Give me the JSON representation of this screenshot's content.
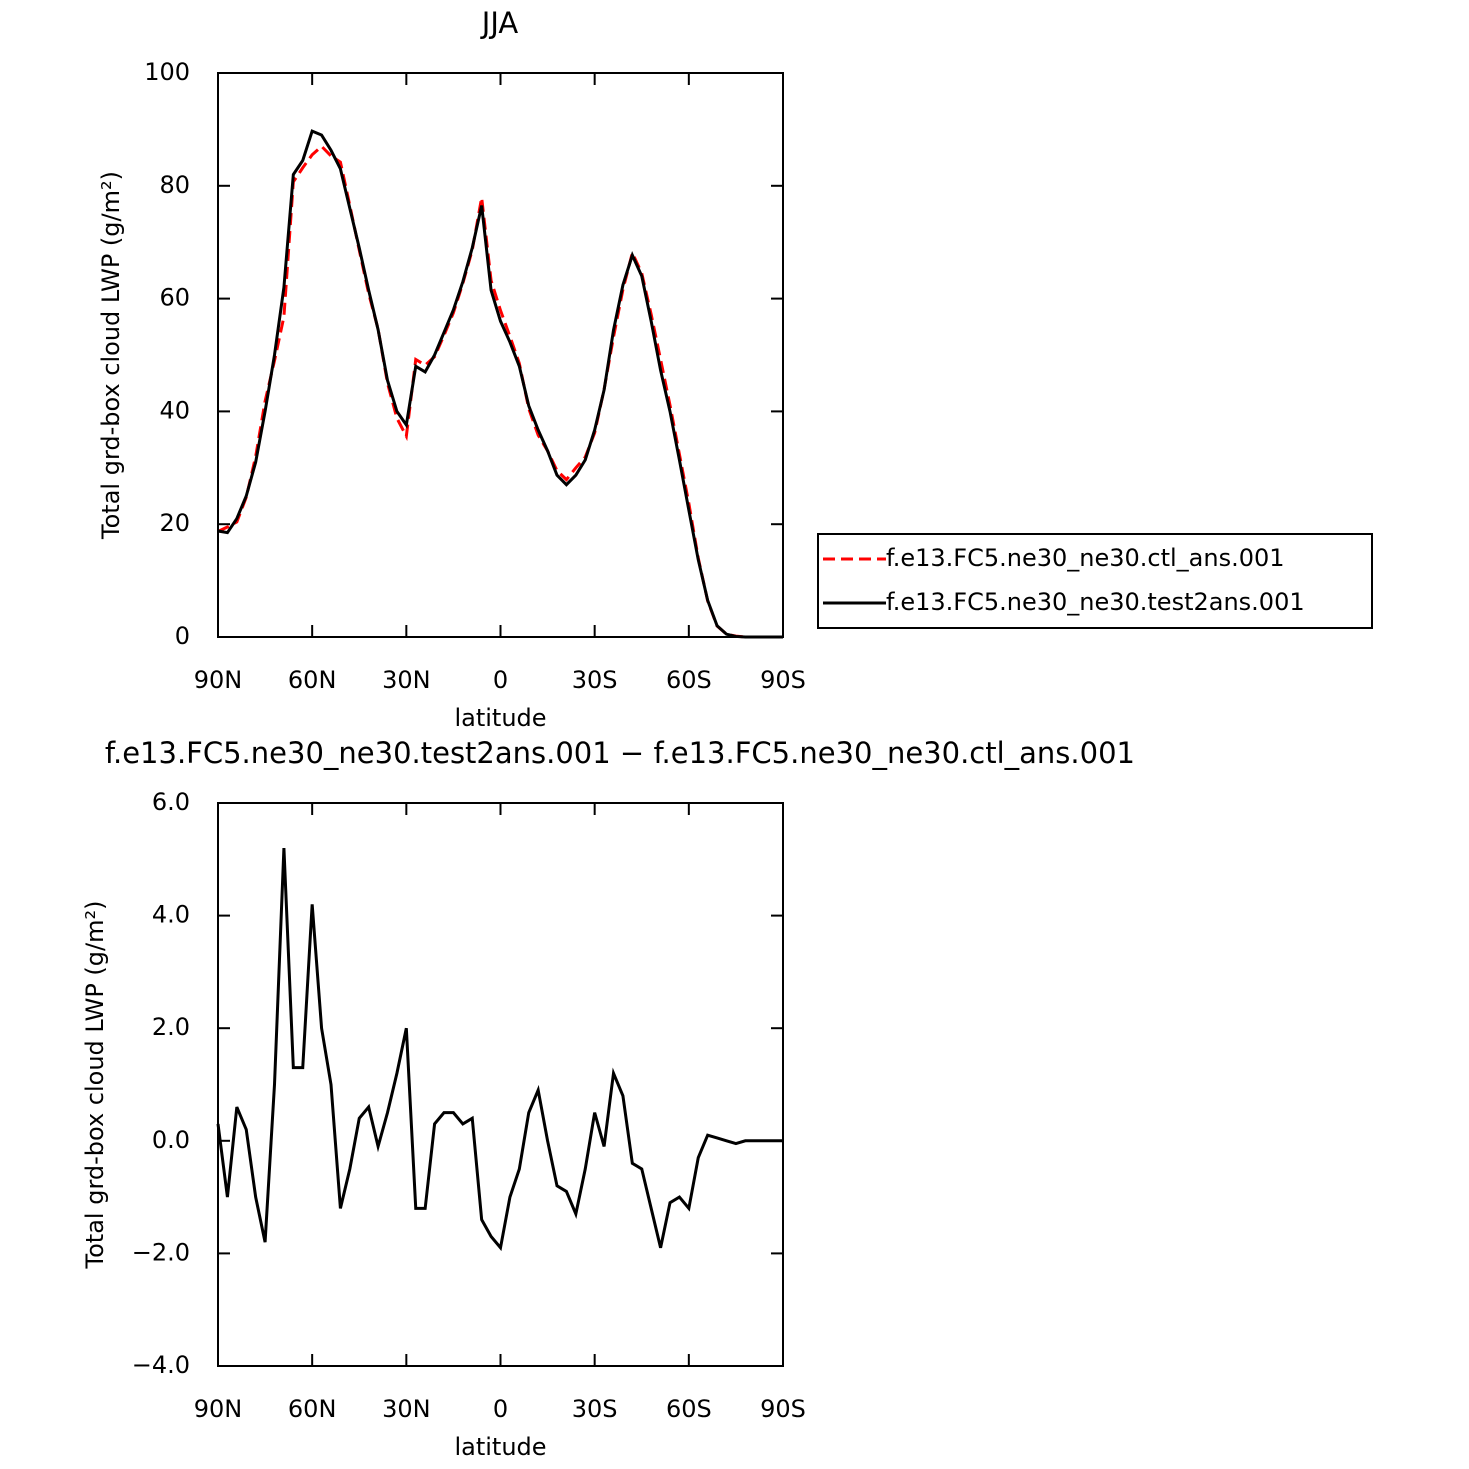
{
  "chart_data": [
    {
      "type": "line",
      "title": "JJA",
      "xlabel": "latitude",
      "ylabel": "Total grd-box cloud LWP (g/m²)",
      "x": [
        90,
        87,
        84,
        81,
        78,
        75,
        72,
        69,
        66,
        63,
        60,
        57,
        54,
        51,
        48,
        45,
        42,
        39,
        36,
        33,
        30,
        27,
        24,
        21,
        18,
        15,
        12,
        9,
        6,
        3,
        0,
        -3,
        -6,
        -9,
        -12,
        -15,
        -18,
        -21,
        -24,
        -27,
        -30,
        -33,
        -36,
        -39,
        -42,
        -45,
        -48,
        -51,
        -54,
        -57,
        -60,
        -63,
        -66,
        -69,
        -72,
        -75,
        -78,
        -81,
        -84,
        -87,
        -90
      ],
      "series": [
        {
          "name": "f.e13.FC5.ne30_ne30.ctl_ans.001",
          "color": "#ff0000",
          "linestyle": "dashed",
          "values": [
            18.7,
            19.5,
            20.4,
            24.8,
            32,
            41.8,
            49,
            56.8,
            80.7,
            83.2,
            85.5,
            87,
            85.3,
            84.2,
            76.5,
            68.6,
            60.9,
            54.6,
            45,
            38.8,
            35.6,
            49.2,
            48.2,
            49.7,
            53.5,
            57.5,
            62.7,
            68.6,
            77.9,
            63.2,
            57.9,
            53.3,
            48.5,
            40.5,
            35.8,
            33,
            29.5,
            27.9,
            30,
            31.9,
            36.2,
            43.9,
            53.2,
            61.6,
            68.1,
            64.5,
            57.2,
            49.2,
            41.1,
            32.4,
            23.7,
            14,
            6.4,
            1.95,
            0.5,
            0.15,
            0,
            0,
            0,
            0,
            0
          ]
        },
        {
          "name": "f.e13.FC5.ne30_ne30.test2ans.001",
          "color": "#000000",
          "linestyle": "solid",
          "values": [
            18.8,
            18.5,
            21,
            25,
            31,
            40,
            50,
            62,
            82,
            84.5,
            89.7,
            89,
            86.3,
            83,
            76,
            69,
            61.5,
            54.5,
            45.5,
            40,
            37.6,
            48,
            47,
            50,
            54,
            58,
            63,
            69,
            76.5,
            61.5,
            56,
            52.3,
            48,
            41,
            36.7,
            33,
            28.7,
            27,
            28.7,
            31.4,
            36.7,
            43.8,
            54.4,
            62.4,
            67.7,
            64,
            56,
            47.3,
            40,
            31.4,
            22.5,
            13.7,
            6.5,
            2,
            0.5,
            0.1,
            0,
            0,
            0,
            0,
            0
          ]
        }
      ],
      "xlim": [
        90,
        -90
      ],
      "xticks": [
        {
          "value": 90,
          "label": "90N"
        },
        {
          "value": 60,
          "label": "60N"
        },
        {
          "value": 30,
          "label": "30N"
        },
        0,
        {
          "value": -30,
          "label": "30S"
        },
        {
          "value": -60,
          "label": "60S"
        },
        {
          "value": -90,
          "label": "90S"
        }
      ],
      "ylim": [
        0,
        100
      ],
      "yticks": [
        0,
        20,
        40,
        60,
        80,
        100
      ],
      "legend": "right"
    },
    {
      "type": "line",
      "title": "f.e13.FC5.ne30_ne30.test2ans.001 − f.e13.FC5.ne30_ne30.ctl_ans.001",
      "xlabel": "latitude",
      "ylabel": "Total grd-box cloud LWP (g/m²)",
      "x": [
        90,
        87,
        84,
        81,
        78,
        75,
        72,
        69,
        66,
        63,
        60,
        57,
        54,
        51,
        48,
        45,
        42,
        39,
        36,
        33,
        30,
        27,
        24,
        21,
        18,
        15,
        12,
        9,
        6,
        3,
        0,
        -3,
        -6,
        -9,
        -12,
        -15,
        -18,
        -21,
        -24,
        -27,
        -30,
        -33,
        -36,
        -39,
        -42,
        -45,
        -48,
        -51,
        -54,
        -57,
        -60,
        -63,
        -66,
        -69,
        -72,
        -75,
        -78,
        -81,
        -84,
        -87,
        -90
      ],
      "series": [
        {
          "color": "#000000",
          "linestyle": "solid",
          "values": [
            0.3,
            -1,
            0.6,
            0.2,
            -1,
            -1.8,
            1,
            5.2,
            1.3,
            1.3,
            4.2,
            2,
            1,
            -1.2,
            -0.5,
            0.4,
            0.6,
            -0.1,
            0.5,
            1.2,
            2,
            -1.2,
            -1.2,
            0.3,
            0.5,
            0.5,
            0.3,
            0.4,
            -1.4,
            -1.7,
            -1.9,
            -1,
            -0.5,
            0.5,
            0.9,
            0,
            -0.8,
            -0.9,
            -1.3,
            -0.5,
            0.5,
            -0.1,
            1.2,
            0.8,
            -0.4,
            -0.5,
            -1.2,
            -1.9,
            -1.1,
            -1,
            -1.2,
            -0.3,
            0.1,
            0.05,
            0,
            -0.05,
            0,
            0,
            0,
            0,
            0
          ]
        }
      ],
      "xlim": [
        90,
        -90
      ],
      "xticks": [
        {
          "value": 90,
          "label": "90N"
        },
        {
          "value": 60,
          "label": "60N"
        },
        {
          "value": 30,
          "label": "30N"
        },
        0,
        {
          "value": -30,
          "label": "30S"
        },
        {
          "value": -60,
          "label": "60S"
        },
        {
          "value": -90,
          "label": "90S"
        }
      ],
      "ylim": [
        -4,
        6
      ],
      "yticks": [
        {
          "value": -4,
          "label": "−4.0"
        },
        {
          "value": -2,
          "label": "−2.0"
        },
        {
          "value": 0,
          "label": "0.0"
        },
        {
          "value": 2,
          "label": "2.0"
        },
        {
          "value": 4,
          "label": "4.0"
        },
        {
          "value": 6,
          "label": "6.0"
        }
      ]
    }
  ]
}
